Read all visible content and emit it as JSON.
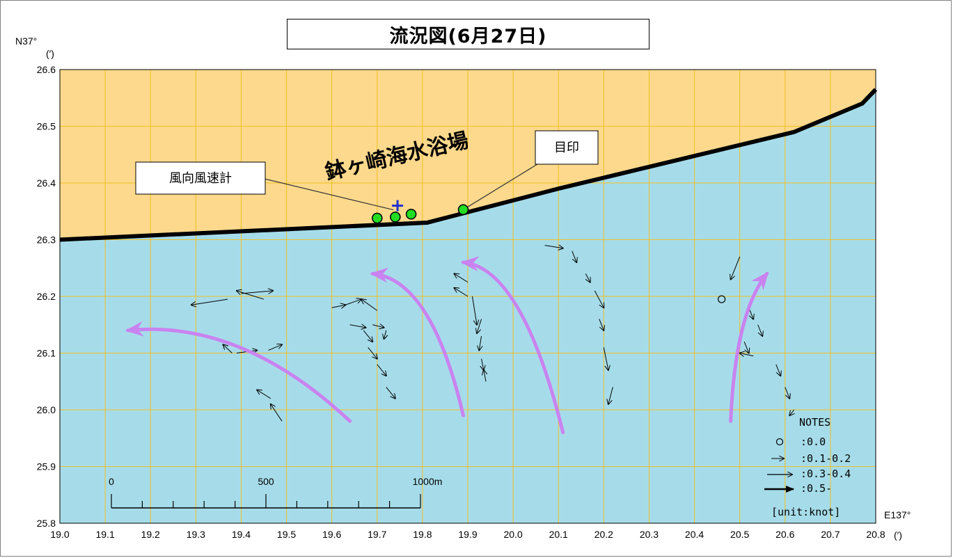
{
  "title": "流況図(6月27日)",
  "lat_label": "N37°",
  "lat_unit": "(′)",
  "lon_label": "E137°",
  "lon_unit": "(′)",
  "y_ticks": [
    "26.6",
    "26.5",
    "26.4",
    "26.3",
    "26.2",
    "26.1",
    "26.0",
    "25.9",
    "25.8"
  ],
  "x_ticks": [
    "19.0",
    "19.1",
    "19.2",
    "19.3",
    "19.4",
    "19.5",
    "19.6",
    "19.7",
    "19.8",
    "19.9",
    "20.0",
    "20.1",
    "20.2",
    "20.3",
    "20.4",
    "20.5",
    "20.6",
    "20.7",
    "20.8"
  ],
  "beach_name": "鉢ヶ崎海水浴場",
  "anemometer_label": "風向風速計",
  "landmark_label": "目印",
  "scale_bar": {
    "labels": [
      "0",
      "500",
      "1000m"
    ]
  },
  "notes": {
    "heading": "NOTES",
    "items": [
      ":0.0",
      ":0.1-0.2",
      ":0.3-0.4",
      ":0.5-"
    ],
    "unit": "[unit:knot]"
  },
  "colors": {
    "land": "#FCD98C",
    "sea": "#A6DCEA",
    "grid": "#F0C020",
    "flow_arrow": "#C983F0",
    "anemometer": "#1E2FD0",
    "station": "#22DD22"
  },
  "icons": {
    "anemometer": "plus-marker",
    "station": "green-circle-marker"
  },
  "chart_data": {
    "type": "vector-map",
    "xlim": [
      19.0,
      20.8
    ],
    "ylim": [
      25.8,
      26.6
    ],
    "coastline": [
      [
        19.0,
        26.3
      ],
      [
        19.81,
        26.33
      ],
      [
        20.1,
        26.39
      ],
      [
        20.62,
        26.49
      ],
      [
        20.77,
        26.54
      ],
      [
        20.8,
        26.565
      ]
    ],
    "anemometer": [
      19.745,
      26.36
    ],
    "stations": [
      [
        19.7,
        26.338
      ],
      [
        19.74,
        26.34
      ],
      [
        19.775,
        26.345
      ],
      [
        19.89,
        26.353
      ]
    ],
    "zero_current_points": [
      [
        20.46,
        26.195
      ]
    ],
    "current_vectors": [
      [
        19.37,
        26.195,
        19.29,
        26.185
      ],
      [
        19.45,
        26.195,
        19.39,
        26.21
      ],
      [
        19.4,
        26.205,
        19.47,
        26.21
      ],
      [
        19.46,
        26.105,
        19.49,
        26.115
      ],
      [
        19.39,
        26.1,
        19.435,
        26.105
      ],
      [
        19.38,
        26.1,
        19.36,
        26.115
      ],
      [
        19.49,
        25.98,
        19.465,
        26.01
      ],
      [
        19.465,
        26.02,
        19.435,
        26.035
      ],
      [
        19.6,
        26.18,
        19.63,
        26.185
      ],
      [
        19.63,
        26.185,
        19.665,
        26.195
      ],
      [
        19.7,
        26.175,
        19.665,
        26.195
      ],
      [
        19.64,
        26.15,
        19.675,
        26.145
      ],
      [
        19.69,
        26.15,
        19.715,
        26.145
      ],
      [
        19.72,
        26.14,
        19.715,
        26.125
      ],
      [
        19.67,
        26.14,
        19.69,
        26.12
      ],
      [
        19.68,
        26.11,
        19.7,
        26.09
      ],
      [
        19.7,
        26.08,
        19.72,
        26.06
      ],
      [
        19.72,
        26.04,
        19.74,
        26.02
      ],
      [
        19.9,
        26.225,
        19.87,
        26.24
      ],
      [
        19.9,
        26.2,
        19.87,
        26.215
      ],
      [
        19.91,
        26.2,
        19.92,
        26.15
      ],
      [
        19.93,
        26.16,
        19.92,
        26.135
      ],
      [
        19.93,
        26.13,
        19.925,
        26.105
      ],
      [
        19.93,
        26.09,
        19.935,
        26.07
      ],
      [
        19.94,
        26.05,
        19.935,
        26.07
      ],
      [
        20.07,
        26.29,
        20.11,
        26.285
      ],
      [
        20.13,
        26.28,
        20.14,
        26.26
      ],
      [
        20.16,
        26.24,
        20.17,
        26.225
      ],
      [
        20.18,
        26.21,
        20.2,
        26.18
      ],
      [
        20.19,
        26.16,
        20.2,
        26.14
      ],
      [
        20.2,
        26.11,
        20.21,
        26.07
      ],
      [
        20.22,
        26.04,
        20.21,
        26.01
      ],
      [
        20.52,
        26.18,
        20.53,
        26.16
      ],
      [
        20.54,
        26.15,
        20.55,
        26.13
      ],
      [
        20.51,
        26.12,
        20.52,
        26.1
      ],
      [
        20.53,
        26.095,
        20.5,
        26.1
      ],
      [
        20.58,
        26.08,
        20.59,
        26.06
      ],
      [
        20.6,
        26.04,
        20.61,
        26.02
      ],
      [
        20.62,
        26.0,
        20.61,
        25.99
      ],
      [
        20.5,
        26.27,
        20.48,
        26.23
      ]
    ],
    "flow_trends": [
      [
        [
          19.64,
          25.98
        ],
        [
          19.4,
          26.16
        ],
        [
          19.15,
          26.14
        ]
      ],
      [
        [
          19.89,
          25.99
        ],
        [
          19.82,
          26.23
        ],
        [
          19.69,
          26.24
        ]
      ],
      [
        [
          20.11,
          25.96
        ],
        [
          20.02,
          26.25
        ],
        [
          19.89,
          26.26
        ]
      ],
      [
        [
          20.48,
          25.98
        ],
        [
          20.49,
          26.17
        ],
        [
          20.56,
          26.24
        ]
      ]
    ]
  }
}
